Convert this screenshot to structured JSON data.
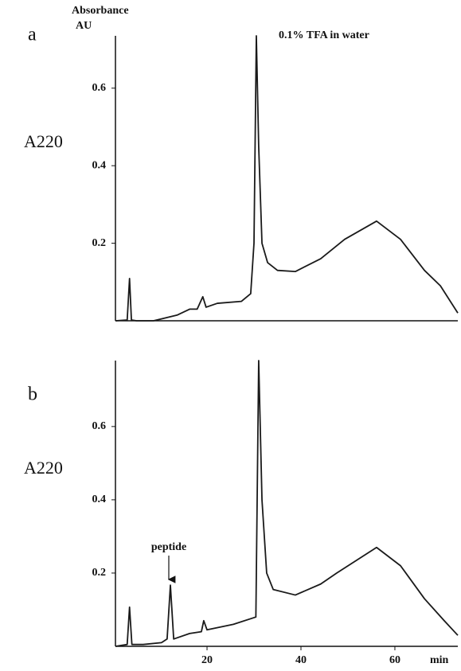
{
  "chart_data": [
    {
      "type": "line",
      "panel_label": "a",
      "axis_title": "Absorbance",
      "axis_unit": "AU",
      "ylabel": "A220",
      "annotation": "0.1% TFA in water",
      "x": [
        0.5,
        3.0,
        3.5,
        3.9,
        5,
        8.6,
        10.3,
        13.7,
        16.3,
        17.9,
        19.1,
        19.8,
        22.2,
        27.3,
        29.3,
        30.0,
        30.5,
        31.0,
        31.7,
        32.9,
        35.0,
        38.8,
        44.2,
        49.3,
        56.1,
        61.2,
        66.3,
        69.7,
        73.4
      ],
      "series": [
        {
          "color": "#1a1a1a",
          "values": [
            0,
            0.002,
            0.109,
            0.002,
            0,
            0,
            0.005,
            0.015,
            0.03,
            0.03,
            0.062,
            0.035,
            0.045,
            0.05,
            0.07,
            0.2,
            0.735,
            0.45,
            0.2,
            0.15,
            0.13,
            0.127,
            0.16,
            0.21,
            0.257,
            0.21,
            0.13,
            0.09,
            0.02
          ]
        }
      ],
      "xlim": [
        0.5,
        73.4
      ],
      "ylim": [
        0,
        0.735
      ],
      "yticks": [
        0.2,
        0.4,
        0.6
      ]
    },
    {
      "type": "line",
      "panel_label": "b",
      "ylabel": "A220",
      "annotation": "peptide",
      "xlabel": "min",
      "x": [
        0.5,
        3.0,
        3.5,
        4.0,
        6.4,
        10.3,
        11.5,
        12.2,
        12.9,
        16.3,
        18.8,
        19.3,
        20.0,
        25.6,
        30.4,
        31.0,
        31.7,
        32.7,
        34.1,
        38.8,
        44.2,
        47.6,
        56.1,
        61.2,
        66.3,
        70.5,
        73.4
      ],
      "series": [
        {
          "color": "#1a1a1a",
          "values": [
            0,
            0.005,
            0.107,
            0.005,
            0.005,
            0.01,
            0.02,
            0.167,
            0.02,
            0.035,
            0.04,
            0.07,
            0.045,
            0.06,
            0.08,
            0.78,
            0.4,
            0.2,
            0.155,
            0.14,
            0.17,
            0.2,
            0.27,
            0.22,
            0.13,
            0.07,
            0.03
          ]
        }
      ],
      "xlim": [
        0.5,
        73.4
      ],
      "ylim": [
        0,
        0.78
      ],
      "yticks": [
        0.2,
        0.4,
        0.6
      ],
      "xticks": [
        20,
        40,
        60
      ]
    }
  ]
}
